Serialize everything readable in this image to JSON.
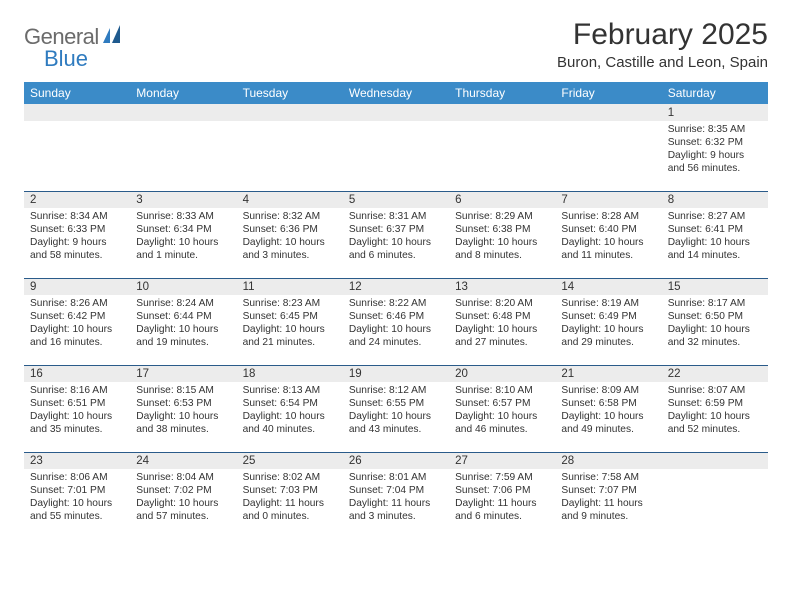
{
  "logo": {
    "text1": "General",
    "text2": "Blue"
  },
  "title": "February 2025",
  "location": "Buron, Castille and Leon, Spain",
  "colors": {
    "header_bg": "#3b8bc8",
    "header_text": "#ffffff",
    "daynum_bg": "#ececec",
    "daynum_border": "#2a5b8a",
    "body_text": "#333333",
    "logo_gray": "#6b6b6b",
    "logo_blue": "#2f7bbf"
  },
  "weekdays": [
    "Sunday",
    "Monday",
    "Tuesday",
    "Wednesday",
    "Thursday",
    "Friday",
    "Saturday"
  ],
  "weeks": [
    {
      "nums": [
        "",
        "",
        "",
        "",
        "",
        "",
        "1"
      ],
      "cells": [
        null,
        null,
        null,
        null,
        null,
        null,
        {
          "sunrise": "Sunrise: 8:35 AM",
          "sunset": "Sunset: 6:32 PM",
          "day1": "Daylight: 9 hours",
          "day2": "and 56 minutes."
        }
      ]
    },
    {
      "nums": [
        "2",
        "3",
        "4",
        "5",
        "6",
        "7",
        "8"
      ],
      "cells": [
        {
          "sunrise": "Sunrise: 8:34 AM",
          "sunset": "Sunset: 6:33 PM",
          "day1": "Daylight: 9 hours",
          "day2": "and 58 minutes."
        },
        {
          "sunrise": "Sunrise: 8:33 AM",
          "sunset": "Sunset: 6:34 PM",
          "day1": "Daylight: 10 hours",
          "day2": "and 1 minute."
        },
        {
          "sunrise": "Sunrise: 8:32 AM",
          "sunset": "Sunset: 6:36 PM",
          "day1": "Daylight: 10 hours",
          "day2": "and 3 minutes."
        },
        {
          "sunrise": "Sunrise: 8:31 AM",
          "sunset": "Sunset: 6:37 PM",
          "day1": "Daylight: 10 hours",
          "day2": "and 6 minutes."
        },
        {
          "sunrise": "Sunrise: 8:29 AM",
          "sunset": "Sunset: 6:38 PM",
          "day1": "Daylight: 10 hours",
          "day2": "and 8 minutes."
        },
        {
          "sunrise": "Sunrise: 8:28 AM",
          "sunset": "Sunset: 6:40 PM",
          "day1": "Daylight: 10 hours",
          "day2": "and 11 minutes."
        },
        {
          "sunrise": "Sunrise: 8:27 AM",
          "sunset": "Sunset: 6:41 PM",
          "day1": "Daylight: 10 hours",
          "day2": "and 14 minutes."
        }
      ]
    },
    {
      "nums": [
        "9",
        "10",
        "11",
        "12",
        "13",
        "14",
        "15"
      ],
      "cells": [
        {
          "sunrise": "Sunrise: 8:26 AM",
          "sunset": "Sunset: 6:42 PM",
          "day1": "Daylight: 10 hours",
          "day2": "and 16 minutes."
        },
        {
          "sunrise": "Sunrise: 8:24 AM",
          "sunset": "Sunset: 6:44 PM",
          "day1": "Daylight: 10 hours",
          "day2": "and 19 minutes."
        },
        {
          "sunrise": "Sunrise: 8:23 AM",
          "sunset": "Sunset: 6:45 PM",
          "day1": "Daylight: 10 hours",
          "day2": "and 21 minutes."
        },
        {
          "sunrise": "Sunrise: 8:22 AM",
          "sunset": "Sunset: 6:46 PM",
          "day1": "Daylight: 10 hours",
          "day2": "and 24 minutes."
        },
        {
          "sunrise": "Sunrise: 8:20 AM",
          "sunset": "Sunset: 6:48 PM",
          "day1": "Daylight: 10 hours",
          "day2": "and 27 minutes."
        },
        {
          "sunrise": "Sunrise: 8:19 AM",
          "sunset": "Sunset: 6:49 PM",
          "day1": "Daylight: 10 hours",
          "day2": "and 29 minutes."
        },
        {
          "sunrise": "Sunrise: 8:17 AM",
          "sunset": "Sunset: 6:50 PM",
          "day1": "Daylight: 10 hours",
          "day2": "and 32 minutes."
        }
      ]
    },
    {
      "nums": [
        "16",
        "17",
        "18",
        "19",
        "20",
        "21",
        "22"
      ],
      "cells": [
        {
          "sunrise": "Sunrise: 8:16 AM",
          "sunset": "Sunset: 6:51 PM",
          "day1": "Daylight: 10 hours",
          "day2": "and 35 minutes."
        },
        {
          "sunrise": "Sunrise: 8:15 AM",
          "sunset": "Sunset: 6:53 PM",
          "day1": "Daylight: 10 hours",
          "day2": "and 38 minutes."
        },
        {
          "sunrise": "Sunrise: 8:13 AM",
          "sunset": "Sunset: 6:54 PM",
          "day1": "Daylight: 10 hours",
          "day2": "and 40 minutes."
        },
        {
          "sunrise": "Sunrise: 8:12 AM",
          "sunset": "Sunset: 6:55 PM",
          "day1": "Daylight: 10 hours",
          "day2": "and 43 minutes."
        },
        {
          "sunrise": "Sunrise: 8:10 AM",
          "sunset": "Sunset: 6:57 PM",
          "day1": "Daylight: 10 hours",
          "day2": "and 46 minutes."
        },
        {
          "sunrise": "Sunrise: 8:09 AM",
          "sunset": "Sunset: 6:58 PM",
          "day1": "Daylight: 10 hours",
          "day2": "and 49 minutes."
        },
        {
          "sunrise": "Sunrise: 8:07 AM",
          "sunset": "Sunset: 6:59 PM",
          "day1": "Daylight: 10 hours",
          "day2": "and 52 minutes."
        }
      ]
    },
    {
      "nums": [
        "23",
        "24",
        "25",
        "26",
        "27",
        "28",
        ""
      ],
      "cells": [
        {
          "sunrise": "Sunrise: 8:06 AM",
          "sunset": "Sunset: 7:01 PM",
          "day1": "Daylight: 10 hours",
          "day2": "and 55 minutes."
        },
        {
          "sunrise": "Sunrise: 8:04 AM",
          "sunset": "Sunset: 7:02 PM",
          "day1": "Daylight: 10 hours",
          "day2": "and 57 minutes."
        },
        {
          "sunrise": "Sunrise: 8:02 AM",
          "sunset": "Sunset: 7:03 PM",
          "day1": "Daylight: 11 hours",
          "day2": "and 0 minutes."
        },
        {
          "sunrise": "Sunrise: 8:01 AM",
          "sunset": "Sunset: 7:04 PM",
          "day1": "Daylight: 11 hours",
          "day2": "and 3 minutes."
        },
        {
          "sunrise": "Sunrise: 7:59 AM",
          "sunset": "Sunset: 7:06 PM",
          "day1": "Daylight: 11 hours",
          "day2": "and 6 minutes."
        },
        {
          "sunrise": "Sunrise: 7:58 AM",
          "sunset": "Sunset: 7:07 PM",
          "day1": "Daylight: 11 hours",
          "day2": "and 9 minutes."
        },
        null
      ]
    }
  ]
}
